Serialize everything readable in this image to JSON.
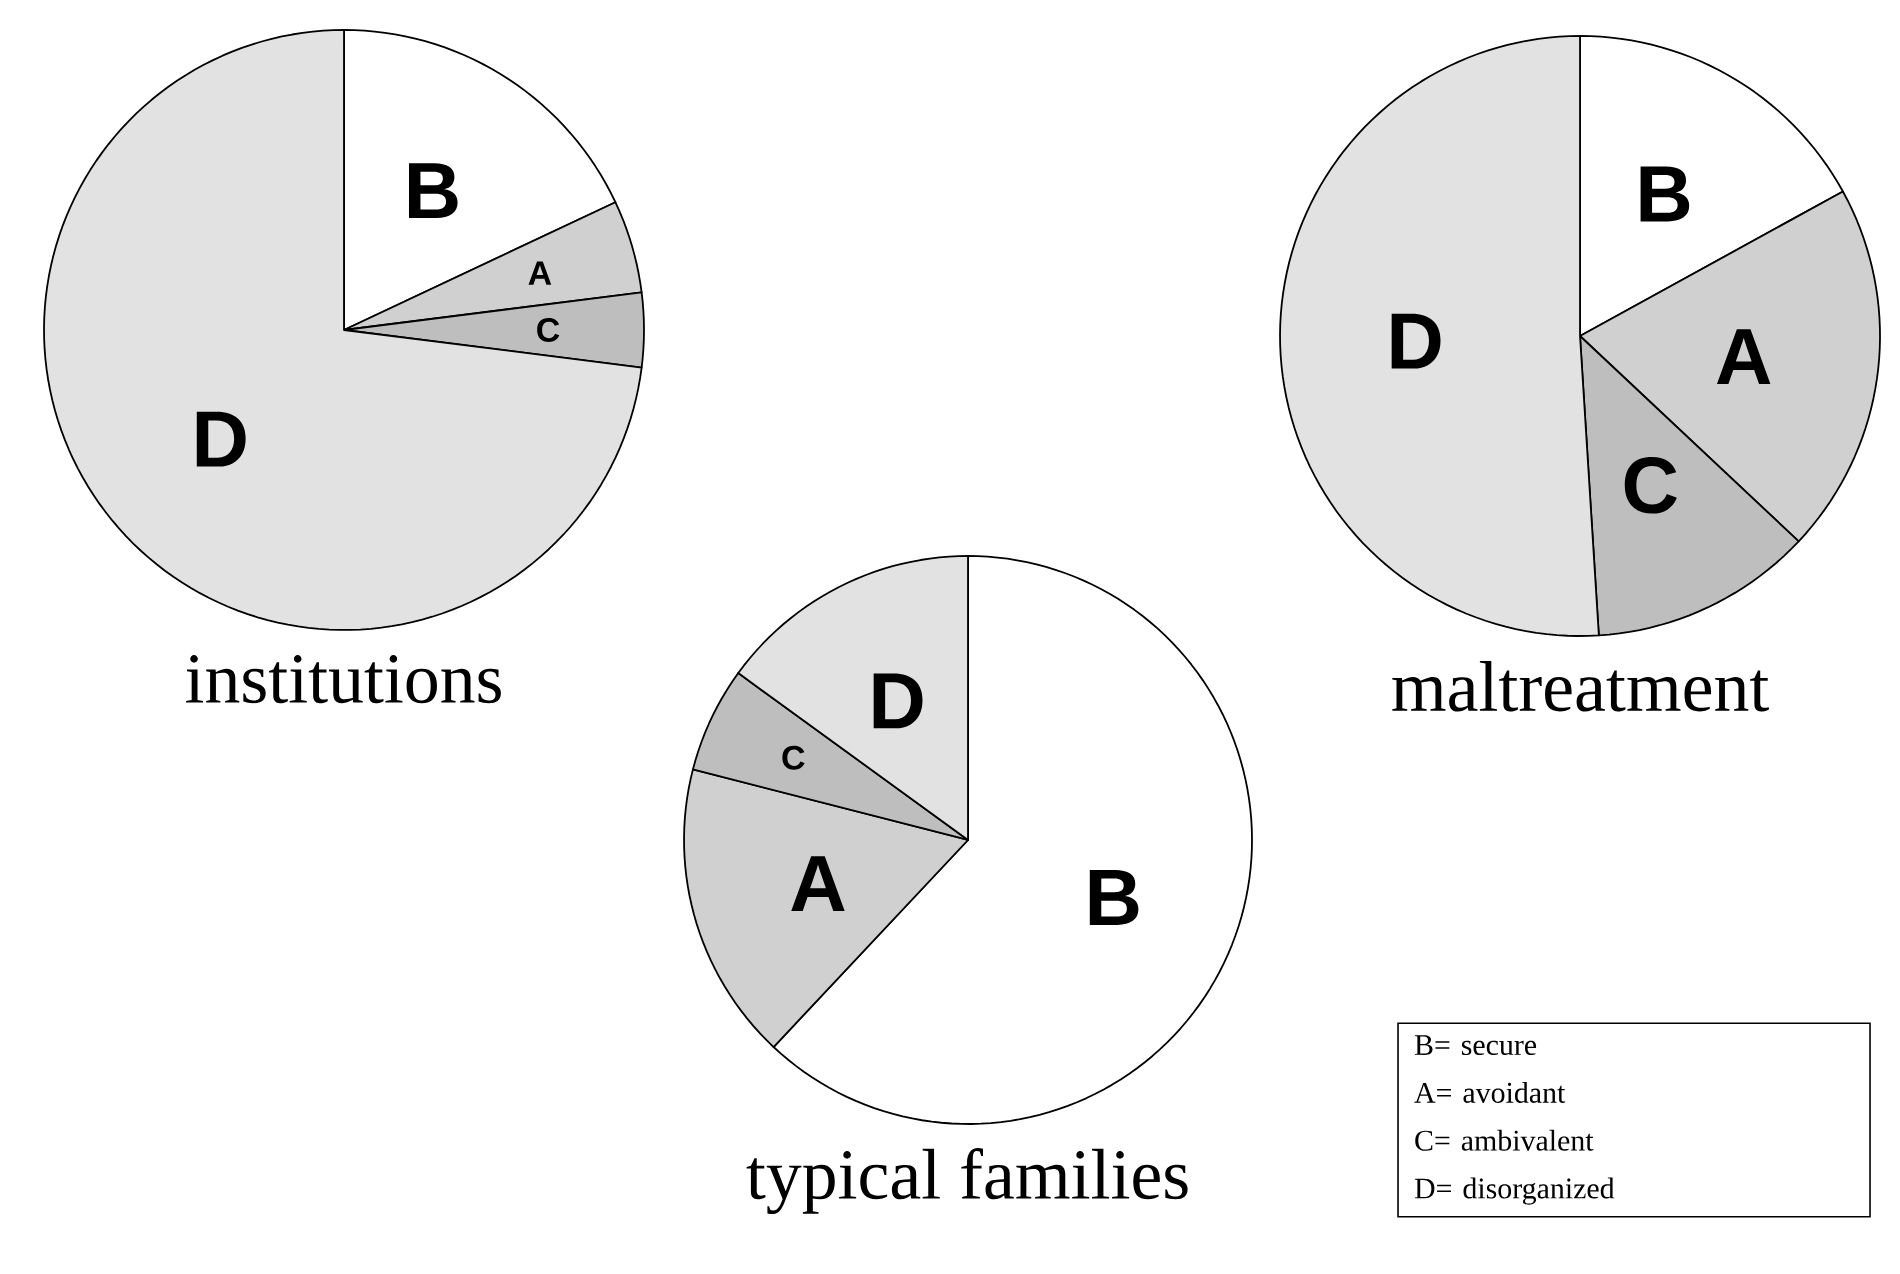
{
  "chart_data": [
    {
      "type": "pie",
      "title": "institutions",
      "categories": [
        "B",
        "A",
        "C",
        "D"
      ],
      "values": [
        18,
        5,
        4,
        73
      ],
      "colors": [
        "#ffffff",
        "#d0d0d0",
        "#bebebe",
        "#e2e2e2"
      ]
    },
    {
      "type": "pie",
      "title": "maltreatment",
      "categories": [
        "B",
        "A",
        "C",
        "D"
      ],
      "values": [
        17,
        20,
        12,
        51
      ],
      "colors": [
        "#ffffff",
        "#d0d0d0",
        "#bebebe",
        "#e2e2e2"
      ]
    },
    {
      "type": "pie",
      "title": "typical families",
      "categories": [
        "B",
        "A",
        "C",
        "D"
      ],
      "values": [
        62,
        17,
        6,
        15
      ],
      "colors": [
        "#ffffff",
        "#d0d0d0",
        "#bebebe",
        "#e2e2e2"
      ],
      "annotations": [
        "B= secure",
        "A= avoidant",
        "C= ambivalent",
        "D= disorganized"
      ]
    }
  ]
}
